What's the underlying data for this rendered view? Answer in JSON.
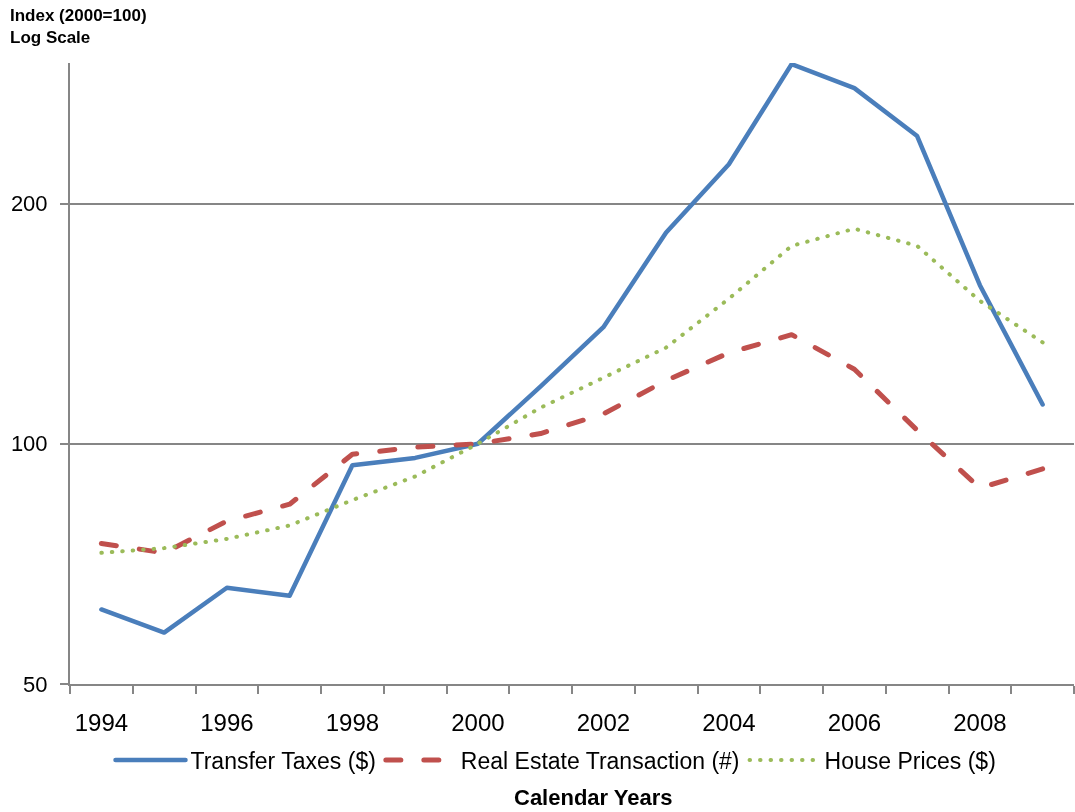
{
  "chart_data": {
    "type": "line",
    "ylabel": "Index (2000=100)\nLog Scale",
    "xlabel": "Calendar Years",
    "categories": [
      "1994",
      null,
      "1996",
      null,
      "1998",
      null,
      "2000",
      null,
      "2002",
      null,
      "2004",
      null,
      "2006",
      null,
      "2008",
      null
    ],
    "series": [
      {
        "name": "Transfer Taxes ($)",
        "color": "#4a7ebb",
        "line_style": "solid",
        "values": [
          62,
          58,
          66,
          64.5,
          94,
          96,
          100,
          118,
          140,
          184,
          224,
          299,
          279,
          243,
          158,
          112
        ]
      },
      {
        "name": "Real Estate Transaction (#)",
        "color": "#c0504d",
        "line_style": "dashed",
        "values": [
          75,
          73,
          80,
          84,
          97,
          99,
          100,
          103,
          109,
          120,
          130,
          137,
          124,
          104,
          88,
          93
        ]
      },
      {
        "name": "House Prices ($)",
        "color": "#9bbb59",
        "line_style": "dotted",
        "values": [
          73,
          74,
          76,
          79,
          85,
          91,
          100,
          111,
          121,
          132,
          152,
          177,
          186,
          177,
          151,
          134
        ]
      }
    ],
    "log": true,
    "ylim": [
      50,
      300
    ],
    "yticks": [
      50,
      100,
      200
    ],
    "grid": "y",
    "legend": "bottom"
  }
}
